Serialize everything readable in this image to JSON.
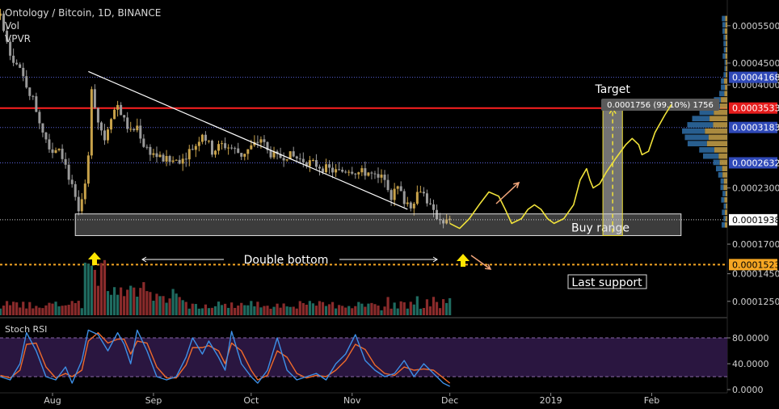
{
  "header": {
    "title": "Ontology / Bitcoin, 1D, BINANCE",
    "vol_label": "Vol",
    "vpvr_label": "VPVR"
  },
  "colors": {
    "up": "#c8a24a",
    "down": "#9a9a9a",
    "vol_up": "#1f6b60",
    "vol_down": "#8a2b2b",
    "trendline": "#ffffff",
    "resistance": "#ff2020",
    "dotted_level": "#5a63d8",
    "last_support": "#f5a623",
    "projection": "#f0e23a",
    "stoch_k": "#3d8fe6",
    "stoch_d": "#ef6a2a",
    "rsi_band": "#2a1640",
    "arrow_yellow": "#ffe600",
    "arrow_orange": "#f0a57a"
  },
  "chart_data": {
    "type": "candlestick",
    "y_axis": {
      "ticks": [
        0.00055,
        0.00045,
        0.0004,
        0.00023,
        0.00017,
        0.000145,
        0.000125
      ],
      "tick_labels": [
        "0.0005500",
        "0.0004500",
        "0.0004000",
        "0.0002300",
        "0.0001700",
        "0.0001450",
        "0.0001250"
      ],
      "scale": "log",
      "range": [
        0.000115,
        0.00061
      ]
    },
    "x_axis": {
      "labels": [
        "Aug",
        "Sep",
        "Oct",
        "Nov",
        "Dec",
        "2019",
        "Feb"
      ],
      "label_days": [
        0,
        31,
        61,
        92,
        122,
        153,
        184
      ]
    },
    "last_day": 122,
    "price_flags": [
      {
        "label": "0.0004168",
        "value": 0.0004168,
        "style": "blue"
      },
      {
        "label": "0.0003533",
        "value": 0.0003533,
        "style": "red"
      },
      {
        "label": "0.0003183",
        "value": 0.0003183,
        "style": "blue"
      },
      {
        "label": "0.0002632",
        "value": 0.0002632,
        "style": "blue"
      },
      {
        "label": "0.0001938",
        "value": 0.0001938,
        "style": "white"
      },
      {
        "label": "0.0001523",
        "value": 0.0001523,
        "style": "orange"
      }
    ],
    "levels": [
      {
        "value": 0.0004168,
        "style": "dotted"
      },
      {
        "value": 0.0003533,
        "style": "red"
      },
      {
        "value": 0.0003183,
        "style": "dotted"
      },
      {
        "value": 0.0002632,
        "style": "dotted"
      },
      {
        "value": 0.0001938,
        "style": "white-dotted"
      },
      {
        "value": 0.0001523,
        "style": "last-support"
      }
    ],
    "close_path": [
      [
        -16,
        0.00058
      ],
      [
        -14,
        0.0005
      ],
      [
        -12,
        0.00046
      ],
      [
        -10,
        0.00043
      ],
      [
        -8,
        0.0004
      ],
      [
        -6,
        0.00037
      ],
      [
        -4,
        0.00033
      ],
      [
        -2,
        0.0003
      ],
      [
        0,
        0.00028
      ],
      [
        2,
        0.00029
      ],
      [
        4,
        0.00026
      ],
      [
        6,
        0.00023
      ],
      [
        8,
        0.0002
      ],
      [
        10,
        0.00023
      ],
      [
        11,
        0.00027
      ],
      [
        12,
        0.0004
      ],
      [
        13,
        0.00036
      ],
      [
        14,
        0.00033
      ],
      [
        16,
        0.0003
      ],
      [
        18,
        0.00034
      ],
      [
        20,
        0.00036
      ],
      [
        22,
        0.00033
      ],
      [
        24,
        0.00031
      ],
      [
        26,
        0.00032
      ],
      [
        28,
        0.00029
      ],
      [
        30,
        0.00028
      ],
      [
        33,
        0.00027
      ],
      [
        36,
        0.000265
      ],
      [
        40,
        0.00027
      ],
      [
        44,
        0.00029
      ],
      [
        46,
        0.00031
      ],
      [
        49,
        0.00028
      ],
      [
        52,
        0.00029
      ],
      [
        55,
        0.000285
      ],
      [
        58,
        0.000275
      ],
      [
        62,
        0.00029
      ],
      [
        64,
        0.0003
      ],
      [
        66,
        0.00028
      ],
      [
        69,
        0.00027
      ],
      [
        72,
        0.000275
      ],
      [
        76,
        0.000268
      ],
      [
        80,
        0.000262
      ],
      [
        84,
        0.000255
      ],
      [
        88,
        0.00025
      ],
      [
        91,
        0.000255
      ],
      [
        94,
        0.00025
      ],
      [
        97,
        0.00025
      ],
      [
        100,
        0.00024
      ],
      [
        102,
        0.000245
      ],
      [
        104,
        0.00022
      ],
      [
        106,
        0.00023
      ],
      [
        108,
        0.000215
      ],
      [
        110,
        0.00021
      ],
      [
        113,
        0.00023
      ],
      [
        115,
        0.000215
      ],
      [
        117,
        0.0002
      ],
      [
        119,
        0.000195
      ],
      [
        121,
        0.000192
      ]
    ],
    "annotations": {
      "trendline": [
        [
          11,
          0.00043
        ],
        [
          109,
          0.000205
        ]
      ],
      "buy_range": {
        "x0": 7,
        "x1": 193,
        "y_low": 0.000178,
        "y_high": 0.0002
      },
      "target_label": "Target",
      "target_box": {
        "x0": 169,
        "x1": 175,
        "y_low": 0.000178,
        "y_high": 0.000355
      },
      "measure_label": "0.0001756 (99.10%) 1756",
      "buy_range_label": "Buy range",
      "double_bottom_label": "Double bottom",
      "last_support_label": "Last support",
      "projection": [
        [
          122,
          0.00019
        ],
        [
          125,
          0.000185
        ],
        [
          128,
          0.000195
        ],
        [
          131,
          0.00021
        ],
        [
          134,
          0.000225
        ],
        [
          137,
          0.00022
        ],
        [
          139,
          0.000205
        ],
        [
          141,
          0.00019
        ],
        [
          144,
          0.000195
        ],
        [
          146,
          0.000205
        ],
        [
          148,
          0.00021
        ],
        [
          150,
          0.000205
        ],
        [
          152,
          0.000195
        ],
        [
          154,
          0.00019
        ],
        [
          157,
          0.000195
        ],
        [
          160,
          0.00021
        ],
        [
          162,
          0.00024
        ],
        [
          164,
          0.000255
        ],
        [
          165,
          0.00024
        ],
        [
          166,
          0.00023
        ],
        [
          168,
          0.000235
        ],
        [
          170,
          0.00025
        ],
        [
          173,
          0.00027
        ],
        [
          176,
          0.00029
        ],
        [
          178,
          0.0003
        ],
        [
          180,
          0.00029
        ],
        [
          181,
          0.000275
        ],
        [
          183,
          0.00028
        ],
        [
          185,
          0.00031
        ],
        [
          188,
          0.00034
        ],
        [
          190,
          0.00036
        ]
      ]
    },
    "stoch_rsi": {
      "label": "Stoch RSI",
      "ticks": [
        80,
        40,
        0
      ],
      "tick_labels": [
        "80.0000",
        "40.0000",
        "0.0000"
      ],
      "band": [
        20,
        80
      ],
      "k": [
        [
          -16,
          20
        ],
        [
          -13,
          15
        ],
        [
          -10,
          40
        ],
        [
          -8,
          88
        ],
        [
          -5,
          60
        ],
        [
          -2,
          20
        ],
        [
          1,
          15
        ],
        [
          4,
          35
        ],
        [
          6,
          10
        ],
        [
          9,
          45
        ],
        [
          11,
          92
        ],
        [
          14,
          85
        ],
        [
          17,
          60
        ],
        [
          20,
          88
        ],
        [
          22,
          70
        ],
        [
          24,
          40
        ],
        [
          26,
          92
        ],
        [
          29,
          60
        ],
        [
          32,
          20
        ],
        [
          35,
          15
        ],
        [
          38,
          20
        ],
        [
          41,
          50
        ],
        [
          43,
          80
        ],
        [
          46,
          55
        ],
        [
          48,
          75
        ],
        [
          51,
          50
        ],
        [
          53,
          30
        ],
        [
          55,
          90
        ],
        [
          58,
          40
        ],
        [
          61,
          20
        ],
        [
          63,
          10
        ],
        [
          66,
          30
        ],
        [
          69,
          80
        ],
        [
          72,
          30
        ],
        [
          75,
          15
        ],
        [
          78,
          20
        ],
        [
          81,
          25
        ],
        [
          84,
          15
        ],
        [
          87,
          40
        ],
        [
          90,
          55
        ],
        [
          93,
          85
        ],
        [
          96,
          45
        ],
        [
          99,
          30
        ],
        [
          102,
          20
        ],
        [
          105,
          25
        ],
        [
          108,
          45
        ],
        [
          111,
          20
        ],
        [
          114,
          40
        ],
        [
          117,
          25
        ],
        [
          120,
          10
        ],
        [
          122,
          5
        ]
      ],
      "d": [
        [
          -16,
          22
        ],
        [
          -13,
          18
        ],
        [
          -10,
          30
        ],
        [
          -8,
          70
        ],
        [
          -5,
          72
        ],
        [
          -2,
          35
        ],
        [
          1,
          18
        ],
        [
          4,
          25
        ],
        [
          6,
          20
        ],
        [
          9,
          30
        ],
        [
          11,
          75
        ],
        [
          14,
          88
        ],
        [
          17,
          72
        ],
        [
          20,
          78
        ],
        [
          22,
          78
        ],
        [
          24,
          55
        ],
        [
          26,
          75
        ],
        [
          29,
          72
        ],
        [
          32,
          35
        ],
        [
          35,
          18
        ],
        [
          38,
          18
        ],
        [
          41,
          38
        ],
        [
          43,
          65
        ],
        [
          46,
          65
        ],
        [
          48,
          68
        ],
        [
          51,
          60
        ],
        [
          53,
          40
        ],
        [
          55,
          72
        ],
        [
          58,
          60
        ],
        [
          61,
          30
        ],
        [
          63,
          15
        ],
        [
          66,
          22
        ],
        [
          69,
          60
        ],
        [
          72,
          50
        ],
        [
          75,
          25
        ],
        [
          78,
          18
        ],
        [
          81,
          22
        ],
        [
          84,
          20
        ],
        [
          87,
          30
        ],
        [
          90,
          45
        ],
        [
          93,
          70
        ],
        [
          96,
          62
        ],
        [
          99,
          38
        ],
        [
          102,
          25
        ],
        [
          105,
          22
        ],
        [
          108,
          35
        ],
        [
          111,
          30
        ],
        [
          114,
          32
        ],
        [
          117,
          30
        ],
        [
          120,
          18
        ],
        [
          122,
          10
        ]
      ]
    }
  }
}
